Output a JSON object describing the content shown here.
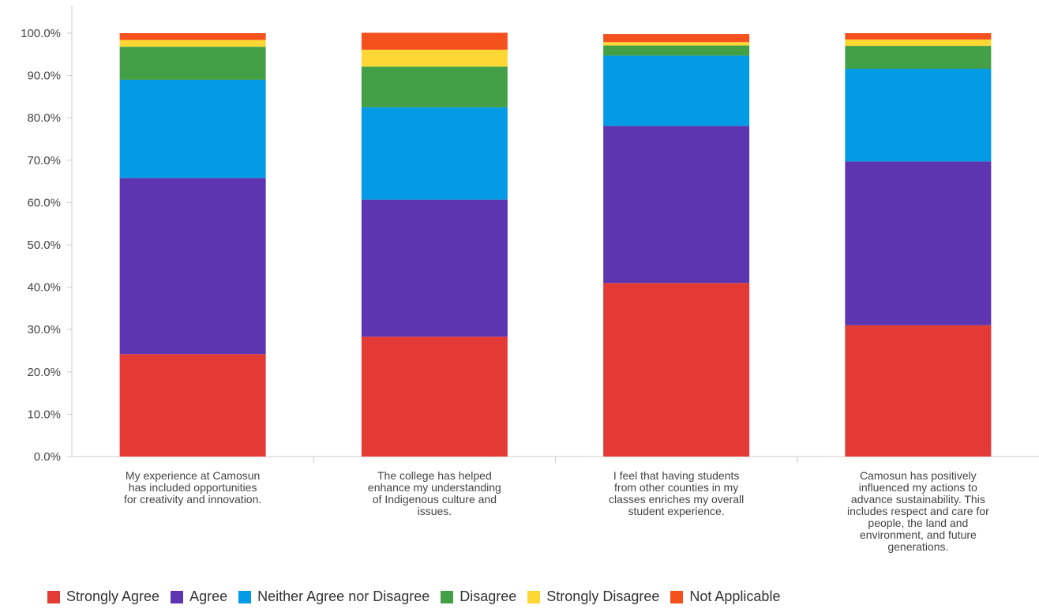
{
  "chart_data": {
    "type": "bar",
    "stacked": true,
    "categories": [
      "My experience at Camosun has included opportunities for creativity and innovation.",
      "The college has helped enhance my understanding of Indigenous culture and issues.",
      "I feel that having students from other counties in my classes enriches my overall student experience.",
      "Camosun has positively influenced my actions to advance sustainability. This includes respect and care for people, the land and environment, and future generations."
    ],
    "series": [
      {
        "name": "Strongly Agree",
        "color": "#e33a35",
        "values": [
          24.2,
          28.3,
          41.0,
          31.0
        ]
      },
      {
        "name": "Agree",
        "color": "#5e35b1",
        "values": [
          41.6,
          32.4,
          37.1,
          38.7
        ]
      },
      {
        "name": "Neither Agree nor Disagree",
        "color": "#039be5",
        "values": [
          23.2,
          21.8,
          16.6,
          21.9
        ]
      },
      {
        "name": "Disagree",
        "color": "#43a047",
        "values": [
          7.8,
          9.6,
          2.4,
          5.4
        ]
      },
      {
        "name": "Strongly Disagree",
        "color": "#fdd835",
        "values": [
          1.6,
          4.0,
          0.8,
          1.5
        ]
      },
      {
        "name": "Not Applicable",
        "color": "#f4511e",
        "values": [
          1.6,
          4.0,
          1.9,
          1.5
        ]
      }
    ],
    "y_ticks": [
      "0.0%",
      "10.0%",
      "20.0%",
      "30.0%",
      "40.0%",
      "50.0%",
      "60.0%",
      "70.0%",
      "80.0%",
      "90.0%",
      "100.0%"
    ],
    "ylim": [
      0,
      100
    ],
    "grid": false,
    "legend_position": "bottom-left",
    "title": "",
    "xlabel": "",
    "ylabel": ""
  }
}
